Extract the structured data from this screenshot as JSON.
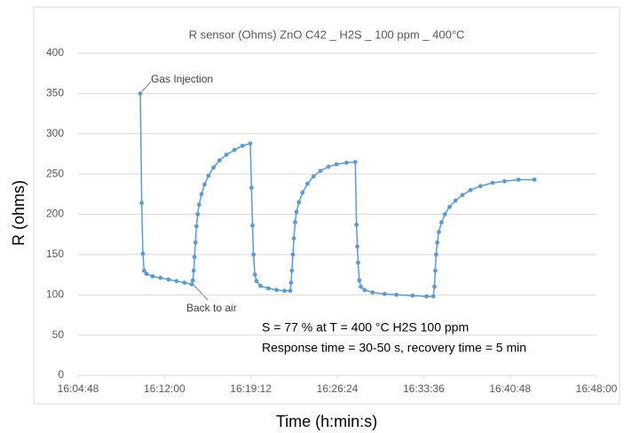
{
  "chart_data": {
    "type": "line",
    "title": "R sensor (Ohms)  ZnO   C42  _ H2S _ 100 ppm _ 400°C",
    "y_label": "R (ohms)",
    "x_label": "Time (h:min:s)",
    "annotations": [
      "Gas Injection",
      "Back to air",
      "S = 77 %  at  T = 400 °C    H2S 100 ppm",
      "Response time = 30-50 s, recovery time = 5 min"
    ],
    "xlim": [
      57888,
      60480
    ],
    "xticks": [
      {
        "value": 57888,
        "label": "16:04:48"
      },
      {
        "value": 58320,
        "label": "16:12:00"
      },
      {
        "value": 58752,
        "label": "16:19:12"
      },
      {
        "value": 59184,
        "label": "16:26:24"
      },
      {
        "value": 59616,
        "label": "16:33:36"
      },
      {
        "value": 60048,
        "label": "16:40:48"
      },
      {
        "value": 60480,
        "label": "16:48:00"
      }
    ],
    "ylim": [
      0,
      400
    ],
    "yticks": [
      0,
      50,
      100,
      150,
      200,
      250,
      300,
      350,
      400
    ],
    "grid": true,
    "series": [
      {
        "name": "R sensor",
        "color": "#5b9bd5",
        "x": [
          58199,
          58206,
          58212,
          58218,
          58230,
          58260,
          58300,
          58340,
          58380,
          58420,
          58456,
          58462,
          58466,
          58470,
          58475,
          58480,
          58486,
          58493,
          58505,
          58520,
          58540,
          58565,
          58595,
          58630,
          58670,
          58710,
          58749,
          58755,
          58760,
          58765,
          58772,
          58780,
          58800,
          58840,
          58880,
          58920,
          58949,
          58953,
          58957,
          58962,
          58967,
          58973,
          58980,
          58992,
          59010,
          59035,
          59065,
          59100,
          59140,
          59180,
          59230,
          59274,
          59280,
          59284,
          59288,
          59294,
          59302,
          59320,
          59360,
          59420,
          59480,
          59560,
          59630,
          59664,
          59670,
          59674,
          59678,
          59684,
          59692,
          59705,
          59722,
          59745,
          59775,
          59810,
          59850,
          59900,
          59960,
          60020,
          60090,
          60170
        ],
        "values": [
          350,
          214,
          151,
          130,
          126,
          123,
          121,
          119,
          117,
          115,
          113,
          118,
          130,
          147,
          165,
          185,
          200,
          212,
          225,
          237,
          248,
          258,
          267,
          274,
          280,
          285,
          288,
          233,
          186,
          150,
          125,
          117,
          111,
          108,
          106,
          105,
          105,
          115,
          130,
          150,
          170,
          190,
          203,
          215,
          227,
          238,
          247,
          254,
          259,
          262,
          264,
          265,
          187,
          160,
          140,
          118,
          110,
          106,
          103,
          101,
          100,
          99,
          98,
          98,
          110,
          130,
          150,
          165,
          178,
          190,
          200,
          209,
          217,
          224,
          230,
          235,
          239,
          241,
          243,
          243
        ]
      }
    ]
  }
}
